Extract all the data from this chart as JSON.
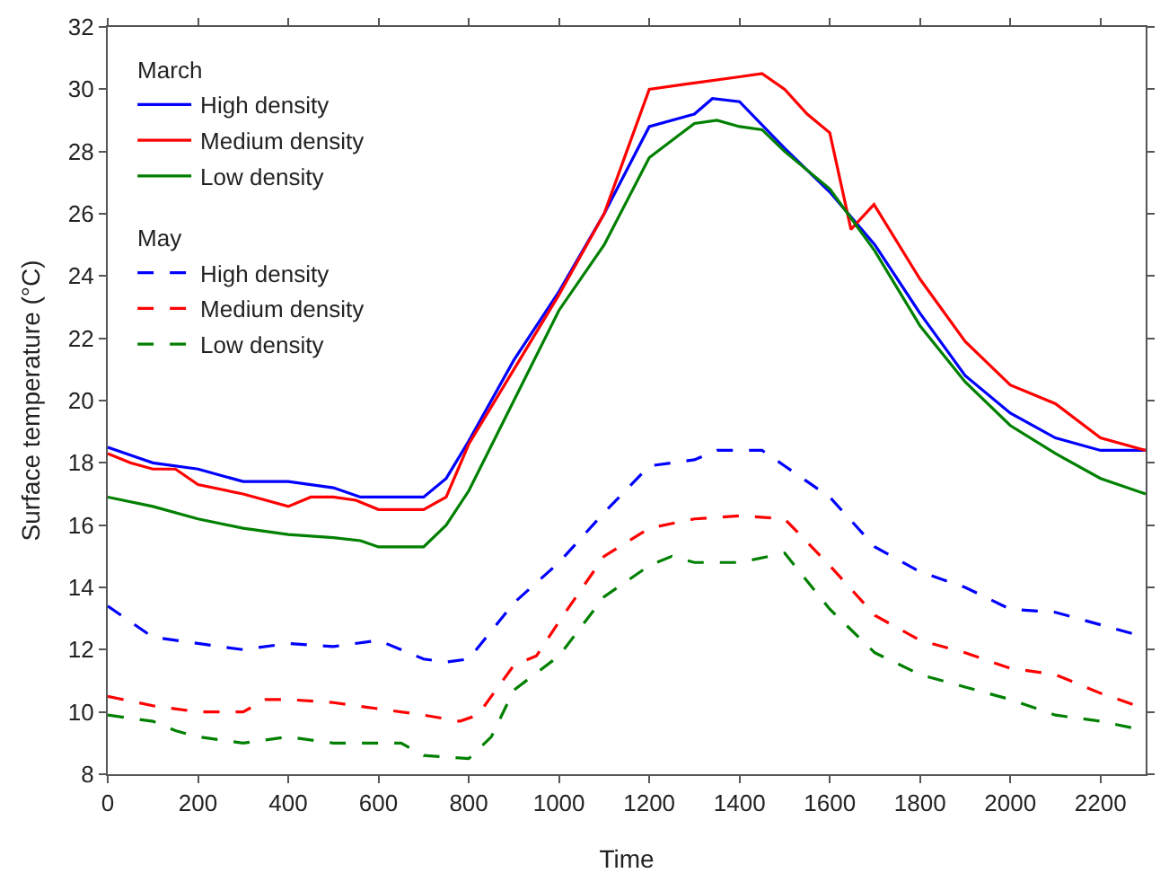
{
  "chart_data": {
    "type": "line",
    "xlabel": "Time",
    "ylabel": "Surface temperature (°C)",
    "annotations": [
      "March",
      "May"
    ],
    "xlim": [
      0,
      2300
    ],
    "xticks": [
      0,
      200,
      400,
      600,
      800,
      1000,
      1200,
      1400,
      1600,
      1800,
      2000,
      2200
    ],
    "ylim": [
      8,
      32
    ],
    "yticks": [
      8,
      10,
      12,
      14,
      16,
      18,
      20,
      22,
      24,
      26,
      28,
      30,
      32
    ],
    "grid": false,
    "legend": "top left",
    "marker": "none",
    "series": [
      {
        "name": "High density",
        "color": "#0000ff",
        "line_style": "solid",
        "x": [
          0,
          100,
          200,
          300,
          400,
          500,
          560,
          600,
          700,
          750,
          800,
          900,
          1000,
          1100,
          1200,
          1300,
          1340,
          1400,
          1500,
          1600,
          1700,
          1800,
          1900,
          2000,
          2100,
          2200,
          2300
        ],
        "values": [
          18.5,
          18.0,
          17.8,
          17.4,
          17.4,
          17.2,
          16.9,
          16.9,
          16.9,
          17.5,
          18.7,
          21.3,
          23.5,
          26.0,
          28.8,
          29.2,
          29.7,
          29.6,
          28.1,
          26.7,
          25.0,
          22.8,
          20.8,
          19.6,
          18.8,
          18.4,
          18.4
        ]
      },
      {
        "name": "Medium density",
        "color": "#ff0000",
        "line_style": "solid",
        "x": [
          0,
          50,
          100,
          150,
          200,
          300,
          400,
          450,
          500,
          550,
          600,
          700,
          750,
          800,
          900,
          1000,
          1100,
          1150,
          1200,
          1300,
          1400,
          1450,
          1500,
          1550,
          1600,
          1647,
          1698,
          1800,
          1900,
          2000,
          2100,
          2200,
          2300
        ],
        "values": [
          18.3,
          18.0,
          17.8,
          17.8,
          17.3,
          17.0,
          16.6,
          16.9,
          16.9,
          16.8,
          16.5,
          16.5,
          16.9,
          18.6,
          21.0,
          23.4,
          26.0,
          28.0,
          30.0,
          30.2,
          30.4,
          30.5,
          30.0,
          29.2,
          28.6,
          25.5,
          26.3,
          23.9,
          21.9,
          20.5,
          19.9,
          18.8,
          18.4
        ]
      },
      {
        "name": "Low density",
        "color": "#008000",
        "line_style": "solid",
        "x": [
          0,
          100,
          200,
          300,
          400,
          500,
          560,
          600,
          700,
          750,
          800,
          900,
          1000,
          1100,
          1200,
          1300,
          1350,
          1400,
          1450,
          1500,
          1600,
          1700,
          1800,
          1900,
          2000,
          2100,
          2200,
          2300
        ],
        "values": [
          16.9,
          16.6,
          16.2,
          15.9,
          15.7,
          15.6,
          15.5,
          15.3,
          15.3,
          16.0,
          17.1,
          20.0,
          22.9,
          25.0,
          27.8,
          28.9,
          29.0,
          28.8,
          28.7,
          28.0,
          26.8,
          24.8,
          22.4,
          20.6,
          19.2,
          18.3,
          17.5,
          17.0
        ]
      },
      {
        "name": "High density",
        "color": "#0000ff",
        "line_style": "dashed",
        "x": [
          0,
          100,
          200,
          300,
          400,
          500,
          600,
          700,
          750,
          800,
          900,
          1000,
          1100,
          1200,
          1300,
          1350,
          1450,
          1500,
          1600,
          1700,
          1800,
          1900,
          2000,
          2100,
          2200,
          2300
        ],
        "values": [
          13.4,
          12.4,
          12.2,
          12.0,
          12.2,
          12.1,
          12.3,
          11.7,
          11.6,
          11.7,
          13.5,
          14.8,
          16.4,
          17.9,
          18.1,
          18.4,
          18.4,
          17.9,
          16.9,
          15.3,
          14.5,
          14.0,
          13.3,
          13.2,
          12.8,
          12.4
        ]
      },
      {
        "name": "Medium density",
        "color": "#ff0000",
        "line_style": "dashed",
        "x": [
          0,
          100,
          200,
          300,
          350,
          400,
          500,
          600,
          700,
          780,
          820,
          900,
          950,
          1000,
          1100,
          1200,
          1300,
          1400,
          1500,
          1600,
          1700,
          1800,
          1900,
          2000,
          2100,
          2200,
          2300
        ],
        "values": [
          10.5,
          10.2,
          10.0,
          10.0,
          10.4,
          10.4,
          10.3,
          10.1,
          9.9,
          9.7,
          9.9,
          11.5,
          11.8,
          12.9,
          15.0,
          15.9,
          16.2,
          16.3,
          16.2,
          14.7,
          13.1,
          12.3,
          11.9,
          11.4,
          11.2,
          10.6,
          10.1
        ]
      },
      {
        "name": "Low density",
        "color": "#008000",
        "line_style": "dashed",
        "x": [
          0,
          100,
          150,
          200,
          300,
          400,
          500,
          650,
          700,
          800,
          850,
          900,
          1000,
          1100,
          1200,
          1250,
          1300,
          1400,
          1500,
          1600,
          1700,
          1800,
          1900,
          2000,
          2100,
          2200,
          2300
        ],
        "values": [
          9.9,
          9.7,
          9.4,
          9.2,
          9.0,
          9.2,
          9.0,
          9.0,
          8.6,
          8.5,
          9.2,
          10.7,
          11.8,
          13.7,
          14.7,
          15.0,
          14.8,
          14.8,
          15.1,
          13.3,
          11.9,
          11.2,
          10.8,
          10.4,
          9.9,
          9.7,
          9.4
        ]
      }
    ]
  }
}
